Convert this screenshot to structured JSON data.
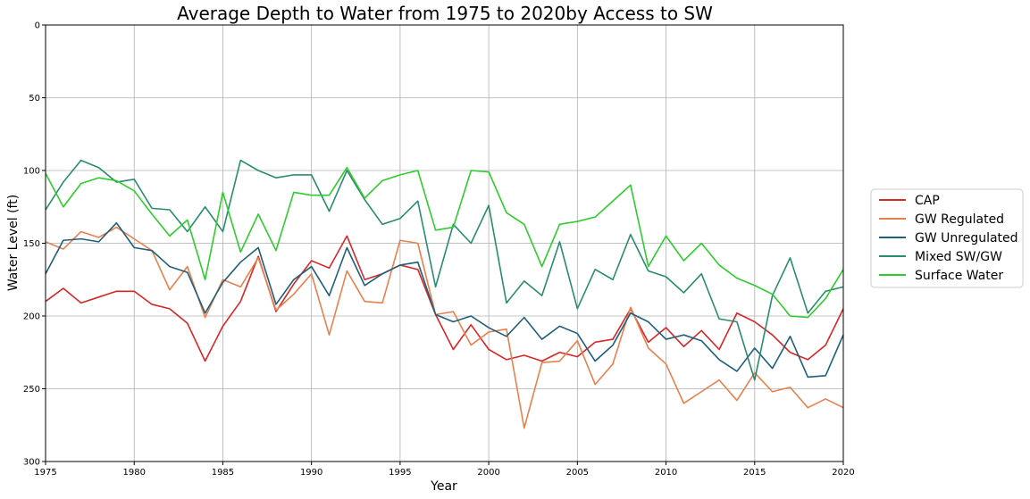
{
  "chart_data": {
    "type": "line",
    "title": "Average Depth to Water from 1975 to 2020by Access to SW",
    "xlabel": "Year",
    "ylabel": "Water Level (ft)",
    "xlim": [
      1975,
      2020
    ],
    "ylim": [
      300,
      0
    ],
    "y_inverted": true,
    "grid": true,
    "legend_position": "right",
    "x_ticks": [
      1975,
      1980,
      1985,
      1990,
      1995,
      2000,
      2005,
      2010,
      2015,
      2020
    ],
    "y_ticks": [
      0,
      50,
      100,
      150,
      200,
      250,
      300
    ],
    "x": [
      1975,
      1976,
      1977,
      1978,
      1979,
      1980,
      1981,
      1982,
      1983,
      1984,
      1985,
      1986,
      1987,
      1988,
      1989,
      1990,
      1991,
      1992,
      1993,
      1994,
      1995,
      1996,
      1997,
      1998,
      1999,
      2000,
      2001,
      2002,
      2003,
      2004,
      2005,
      2006,
      2007,
      2008,
      2009,
      2010,
      2011,
      2012,
      2013,
      2014,
      2015,
      2016,
      2017,
      2018,
      2019,
      2020
    ],
    "series": [
      {
        "name": "CAP",
        "color": "#d62728",
        "values": [
          190,
          181,
          191,
          187,
          183,
          183,
          192,
          195,
          205,
          231,
          207,
          190,
          159,
          197,
          178,
          162,
          167,
          145,
          175,
          171,
          165,
          168,
          199,
          223,
          206,
          223,
          230,
          227,
          231,
          225,
          228,
          218,
          216,
          195,
          218,
          208,
          221,
          210,
          223,
          198,
          204,
          213,
          225,
          230,
          220,
          195
        ]
      },
      {
        "name": "GW Regulated",
        "color": "#e8804e",
        "values": [
          149,
          154,
          142,
          146,
          139,
          147,
          155,
          182,
          166,
          201,
          175,
          180,
          160,
          196,
          185,
          171,
          213,
          169,
          190,
          191,
          148,
          150,
          199,
          197,
          220,
          211,
          209,
          277,
          232,
          231,
          217,
          247,
          233,
          194,
          222,
          233,
          260,
          252,
          244,
          258,
          239,
          252,
          249,
          263,
          257,
          263
        ]
      },
      {
        "name": "GW Unregulated",
        "color": "#1f5f7a",
        "values": [
          171,
          148,
          147,
          149,
          136,
          153,
          155,
          166,
          170,
          198,
          177,
          163,
          153,
          192,
          175,
          166,
          186,
          153,
          179,
          171,
          165,
          163,
          199,
          204,
          200,
          208,
          214,
          201,
          216,
          207,
          212,
          231,
          220,
          198,
          204,
          216,
          213,
          217,
          230,
          238,
          222,
          236,
          214,
          242,
          241,
          213
        ]
      },
      {
        "name": "Mixed SW/GW",
        "color": "#2a8c6e",
        "values": [
          127,
          108,
          93,
          98,
          108,
          106,
          126,
          127,
          142,
          125,
          142,
          93,
          100,
          105,
          103,
          103,
          128,
          100,
          120,
          137,
          133,
          121,
          180,
          137,
          150,
          124,
          191,
          176,
          186,
          149,
          195,
          168,
          175,
          144,
          169,
          173,
          184,
          171,
          202,
          204,
          244,
          186,
          160,
          198,
          183,
          180
        ]
      },
      {
        "name": "Surface Water",
        "color": "#2ecc2e",
        "values": [
          102,
          125,
          109,
          105,
          107,
          114,
          130,
          145,
          134,
          175,
          115,
          156,
          130,
          155,
          115,
          117,
          117,
          98,
          119,
          107,
          103,
          100,
          141,
          139,
          100,
          101,
          129,
          137,
          166,
          137,
          135,
          132,
          121,
          110,
          166,
          145,
          162,
          150,
          165,
          174,
          179,
          185,
          200,
          201,
          188,
          168
        ]
      }
    ]
  }
}
